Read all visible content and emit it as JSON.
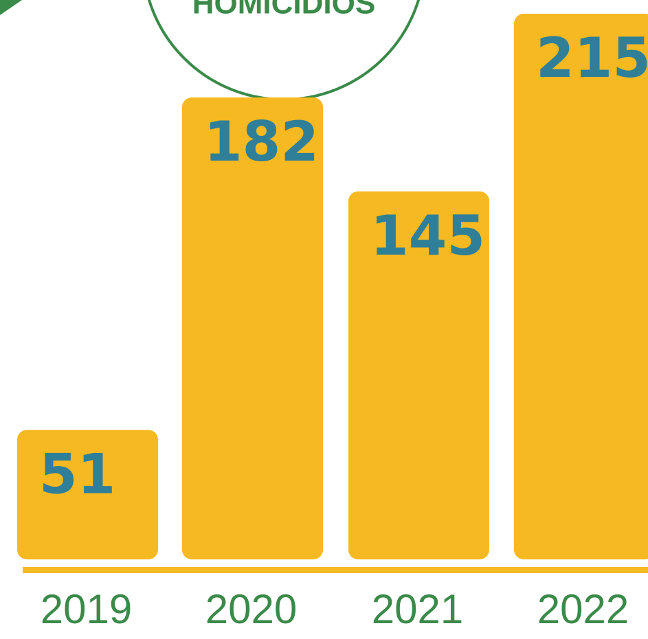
{
  "chart_data": {
    "type": "bar",
    "title": "HOMICIDIOS",
    "categories": [
      "2019",
      "2020",
      "2021",
      "2022"
    ],
    "values": [
      51,
      182,
      145,
      215
    ],
    "color": "#f6b921"
  }
}
